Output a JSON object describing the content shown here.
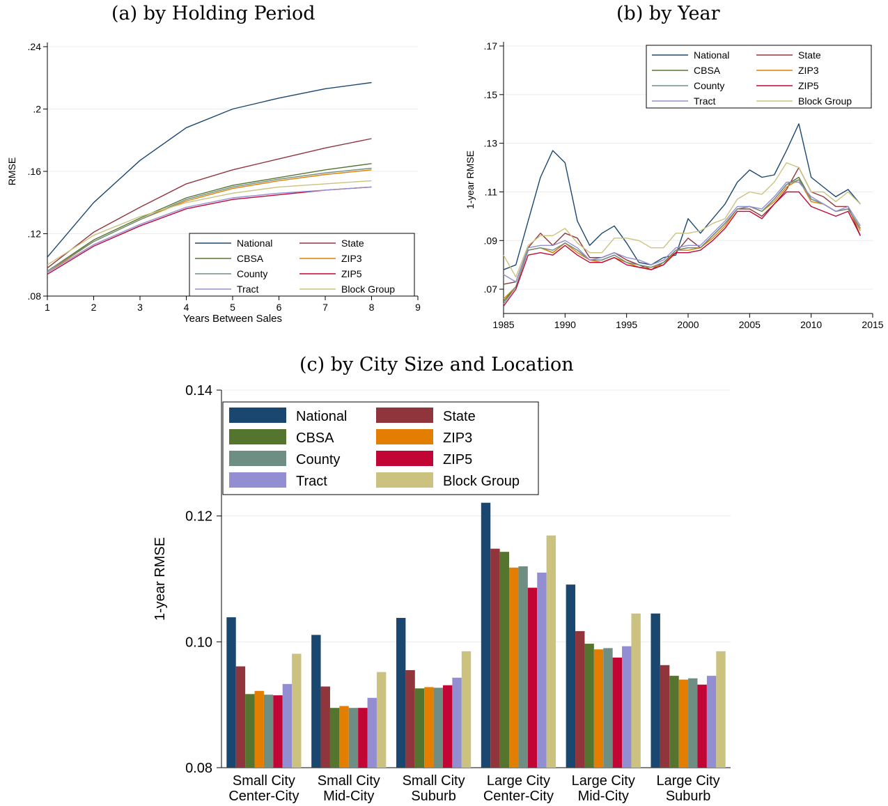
{
  "series_colors": {
    "National": "#1a476f",
    "State": "#90353b",
    "CBSA": "#55752f",
    "ZIP3": "#e37e00",
    "County": "#6e8e84",
    "ZIP5": "#c10534",
    "Tract": "#938dd2",
    "Block Group": "#cac27e"
  },
  "chart_data": [
    {
      "id": "a",
      "type": "line",
      "title": "(a) by Holding Period",
      "xlabel": "Years Between Sales",
      "ylabel": "RMSE",
      "xlim": [
        1,
        9
      ],
      "ylim": [
        0.08,
        0.24
      ],
      "x_ticks": [
        "1",
        "2",
        "3",
        "4",
        "5",
        "6",
        "7",
        "8",
        "9"
      ],
      "y_ticks": [
        ".08",
        ".12",
        ".16",
        ".2",
        ".24"
      ],
      "grid": true,
      "legend_position": "bottom-right",
      "x": [
        1,
        2,
        3,
        4,
        5,
        6,
        7,
        8
      ],
      "series": [
        {
          "name": "National",
          "values": [
            0.105,
            0.14,
            0.167,
            0.188,
            0.2,
            0.207,
            0.213,
            0.217
          ]
        },
        {
          "name": "State",
          "values": [
            0.098,
            0.121,
            0.137,
            0.152,
            0.161,
            0.168,
            0.175,
            0.181
          ]
        },
        {
          "name": "CBSA",
          "values": [
            0.096,
            0.116,
            0.13,
            0.143,
            0.151,
            0.156,
            0.161,
            0.165
          ]
        },
        {
          "name": "ZIP3",
          "values": [
            0.095,
            0.115,
            0.129,
            0.141,
            0.149,
            0.154,
            0.158,
            0.161
          ]
        },
        {
          "name": "County",
          "values": [
            0.096,
            0.115,
            0.129,
            0.142,
            0.15,
            0.155,
            0.159,
            0.162
          ]
        },
        {
          "name": "ZIP5",
          "values": [
            0.094,
            0.112,
            0.125,
            0.136,
            0.142,
            0.145,
            0.148,
            0.15
          ]
        },
        {
          "name": "Tract",
          "values": [
            0.095,
            0.113,
            0.126,
            0.137,
            0.143,
            0.146,
            0.148,
            0.15
          ]
        },
        {
          "name": "Block Group",
          "values": [
            0.1,
            0.119,
            0.131,
            0.14,
            0.146,
            0.15,
            0.152,
            0.154
          ]
        }
      ]
    },
    {
      "id": "b",
      "type": "line",
      "title": "(b) by Year",
      "xlabel": "",
      "ylabel": "1-year RMSE",
      "xlim": [
        1985,
        2015
      ],
      "ylim": [
        0.06,
        0.17
      ],
      "x_ticks": [
        "1985",
        "1990",
        "1995",
        "2000",
        "2005",
        "2010",
        "2015"
      ],
      "y_ticks": [
        ".07",
        ".09",
        ".11",
        ".13",
        ".15",
        ".17"
      ],
      "grid": true,
      "legend_position": "top-right",
      "x": [
        1985,
        1986,
        1987,
        1988,
        1989,
        1990,
        1991,
        1992,
        1993,
        1994,
        1995,
        1996,
        1997,
        1998,
        1999,
        2000,
        2001,
        2002,
        2003,
        2004,
        2005,
        2006,
        2007,
        2008,
        2009,
        2010,
        2011,
        2012,
        2013,
        2014
      ],
      "series": [
        {
          "name": "National",
          "values": [
            0.078,
            0.08,
            0.098,
            0.116,
            0.127,
            0.122,
            0.098,
            0.088,
            0.093,
            0.096,
            0.089,
            0.081,
            0.08,
            0.083,
            0.084,
            0.099,
            0.093,
            0.099,
            0.105,
            0.114,
            0.119,
            0.116,
            0.117,
            0.127,
            0.138,
            0.116,
            0.112,
            0.108,
            0.111,
            0.105
          ]
        },
        {
          "name": "State",
          "values": [
            0.072,
            0.073,
            0.087,
            0.093,
            0.088,
            0.093,
            0.091,
            0.083,
            0.083,
            0.085,
            0.082,
            0.08,
            0.078,
            0.081,
            0.085,
            0.091,
            0.087,
            0.092,
            0.097,
            0.103,
            0.103,
            0.1,
            0.105,
            0.111,
            0.12,
            0.11,
            0.108,
            0.104,
            0.104,
            0.092
          ]
        },
        {
          "name": "CBSA",
          "values": [
            0.065,
            0.071,
            0.086,
            0.087,
            0.085,
            0.089,
            0.086,
            0.082,
            0.082,
            0.084,
            0.081,
            0.079,
            0.079,
            0.081,
            0.086,
            0.087,
            0.087,
            0.092,
            0.097,
            0.103,
            0.104,
            0.102,
            0.107,
            0.113,
            0.116,
            0.107,
            0.105,
            0.102,
            0.103,
            0.095
          ]
        },
        {
          "name": "ZIP3",
          "values": [
            0.066,
            0.071,
            0.086,
            0.087,
            0.085,
            0.089,
            0.085,
            0.082,
            0.081,
            0.083,
            0.081,
            0.079,
            0.079,
            0.08,
            0.086,
            0.086,
            0.087,
            0.091,
            0.096,
            0.103,
            0.104,
            0.102,
            0.106,
            0.112,
            0.115,
            0.106,
            0.105,
            0.102,
            0.103,
            0.094
          ]
        },
        {
          "name": "County",
          "values": [
            0.064,
            0.071,
            0.086,
            0.087,
            0.086,
            0.089,
            0.086,
            0.082,
            0.082,
            0.084,
            0.081,
            0.08,
            0.079,
            0.081,
            0.086,
            0.087,
            0.087,
            0.092,
            0.097,
            0.103,
            0.104,
            0.102,
            0.107,
            0.113,
            0.115,
            0.107,
            0.105,
            0.102,
            0.103,
            0.095
          ]
        },
        {
          "name": "ZIP5",
          "values": [
            0.063,
            0.07,
            0.084,
            0.085,
            0.084,
            0.088,
            0.084,
            0.081,
            0.081,
            0.083,
            0.08,
            0.079,
            0.078,
            0.08,
            0.085,
            0.085,
            0.086,
            0.09,
            0.095,
            0.102,
            0.102,
            0.099,
            0.105,
            0.11,
            0.11,
            0.104,
            0.102,
            0.1,
            0.102,
            0.092
          ]
        },
        {
          "name": "Tract",
          "values": [
            0.076,
            0.073,
            0.087,
            0.088,
            0.088,
            0.09,
            0.087,
            0.082,
            0.083,
            0.085,
            0.083,
            0.082,
            0.08,
            0.082,
            0.087,
            0.088,
            0.088,
            0.093,
            0.098,
            0.104,
            0.104,
            0.103,
            0.108,
            0.114,
            0.114,
            0.108,
            0.105,
            0.102,
            0.104,
            0.096
          ]
        },
        {
          "name": "Block Group",
          "values": [
            0.084,
            0.075,
            0.088,
            0.092,
            0.092,
            0.095,
            0.089,
            0.085,
            0.085,
            0.091,
            0.091,
            0.09,
            0.087,
            0.087,
            0.093,
            0.093,
            0.094,
            0.097,
            0.099,
            0.107,
            0.11,
            0.109,
            0.114,
            0.122,
            0.12,
            0.11,
            0.11,
            0.106,
            0.11,
            0.105
          ]
        }
      ]
    },
    {
      "id": "c",
      "type": "bar",
      "title": "(c) by City Size and Location",
      "xlabel": "",
      "ylabel": "1-year RMSE",
      "ylim": [
        0.08,
        0.14
      ],
      "y_ticks": [
        "0.08",
        "0.10",
        "0.12",
        "0.14"
      ],
      "grid": true,
      "legend_position": "top-left",
      "categories": [
        [
          "Small City",
          "Center-City"
        ],
        [
          "Small City",
          "Mid-City"
        ],
        [
          "Small City",
          "Suburb"
        ],
        [
          "Large City",
          "Center-City"
        ],
        [
          "Large City",
          "Mid-City"
        ],
        [
          "Large City",
          "Suburb"
        ]
      ],
      "series": [
        {
          "name": "National",
          "values": [
            0.1039,
            0.1011,
            0.1038,
            0.1221,
            0.1091,
            0.1045
          ]
        },
        {
          "name": "State",
          "values": [
            0.0961,
            0.0929,
            0.0955,
            0.1148,
            0.1017,
            0.0963
          ]
        },
        {
          "name": "CBSA",
          "values": [
            0.0917,
            0.0895,
            0.0926,
            0.1143,
            0.0997,
            0.0946
          ]
        },
        {
          "name": "ZIP3",
          "values": [
            0.0922,
            0.0898,
            0.0928,
            0.1118,
            0.0988,
            0.094
          ]
        },
        {
          "name": "County",
          "values": [
            0.0916,
            0.0895,
            0.0927,
            0.112,
            0.099,
            0.0942
          ]
        },
        {
          "name": "ZIP5",
          "values": [
            0.0915,
            0.0895,
            0.0931,
            0.1086,
            0.0975,
            0.0932
          ]
        },
        {
          "name": "Tract",
          "values": [
            0.0933,
            0.0911,
            0.0943,
            0.111,
            0.0993,
            0.0946
          ]
        },
        {
          "name": "Block Group",
          "values": [
            0.0981,
            0.0952,
            0.0985,
            0.1169,
            0.1045,
            0.0985
          ]
        }
      ]
    }
  ]
}
